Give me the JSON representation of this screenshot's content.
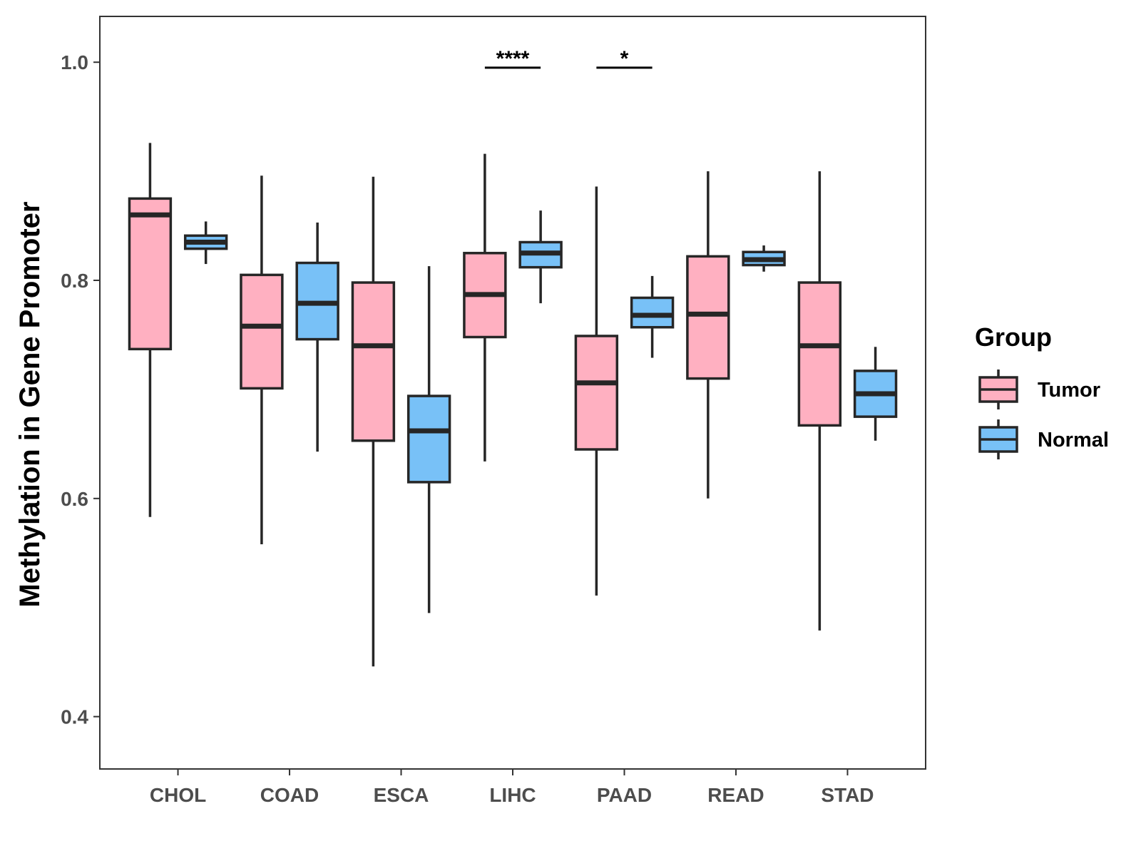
{
  "chart_data": {
    "type": "boxplot",
    "title": "",
    "xlabel": "",
    "ylabel": "Methylation in Gene Promoter",
    "ylim": [
      0.352,
      1.042
    ],
    "yticks": [
      0.4,
      0.6,
      0.8,
      1.0
    ],
    "ytick_labels": [
      "0.4",
      "0.6",
      "0.8",
      "1.0"
    ],
    "grid": false,
    "categories": [
      "CHOL",
      "COAD",
      "ESCA",
      "LIHC",
      "PAAD",
      "READ",
      "STAD"
    ],
    "legend": {
      "title": "Group",
      "position": "right",
      "entries": [
        {
          "name": "Tumor",
          "color": "#FFB0C1"
        },
        {
          "name": "Normal",
          "color": "#78C1F7"
        }
      ]
    },
    "series": [
      {
        "name": "Tumor",
        "color": "#FFB0C1",
        "boxes": [
          {
            "category": "CHOL",
            "min": 0.583,
            "q1": 0.737,
            "median": 0.86,
            "q3": 0.875,
            "max": 0.926
          },
          {
            "category": "COAD",
            "min": 0.558,
            "q1": 0.701,
            "median": 0.758,
            "q3": 0.805,
            "max": 0.896
          },
          {
            "category": "ESCA",
            "min": 0.446,
            "q1": 0.653,
            "median": 0.74,
            "q3": 0.798,
            "max": 0.895
          },
          {
            "category": "LIHC",
            "min": 0.634,
            "q1": 0.748,
            "median": 0.787,
            "q3": 0.825,
            "max": 0.916
          },
          {
            "category": "PAAD",
            "min": 0.511,
            "q1": 0.645,
            "median": 0.706,
            "q3": 0.749,
            "max": 0.886
          },
          {
            "category": "READ",
            "min": 0.6,
            "q1": 0.71,
            "median": 0.769,
            "q3": 0.822,
            "max": 0.9
          },
          {
            "category": "STAD",
            "min": 0.479,
            "q1": 0.667,
            "median": 0.74,
            "q3": 0.798,
            "max": 0.9
          }
        ]
      },
      {
        "name": "Normal",
        "color": "#78C1F7",
        "boxes": [
          {
            "category": "CHOL",
            "min": 0.815,
            "q1": 0.829,
            "median": 0.835,
            "q3": 0.841,
            "max": 0.854
          },
          {
            "category": "COAD",
            "min": 0.643,
            "q1": 0.746,
            "median": 0.779,
            "q3": 0.816,
            "max": 0.853
          },
          {
            "category": "ESCA",
            "min": 0.495,
            "q1": 0.615,
            "median": 0.662,
            "q3": 0.694,
            "max": 0.813
          },
          {
            "category": "LIHC",
            "min": 0.779,
            "q1": 0.812,
            "median": 0.825,
            "q3": 0.835,
            "max": 0.864
          },
          {
            "category": "PAAD",
            "min": 0.729,
            "q1": 0.757,
            "median": 0.768,
            "q3": 0.784,
            "max": 0.804
          },
          {
            "category": "READ",
            "min": 0.808,
            "q1": 0.814,
            "median": 0.819,
            "q3": 0.826,
            "max": 0.832
          },
          {
            "category": "STAD",
            "min": 0.653,
            "q1": 0.675,
            "median": 0.696,
            "q3": 0.717,
            "max": 0.739
          }
        ]
      }
    ],
    "annotations": [
      {
        "category": "LIHC",
        "label": "****",
        "y": 0.995
      },
      {
        "category": "PAAD",
        "label": "*",
        "y": 0.995
      }
    ]
  }
}
